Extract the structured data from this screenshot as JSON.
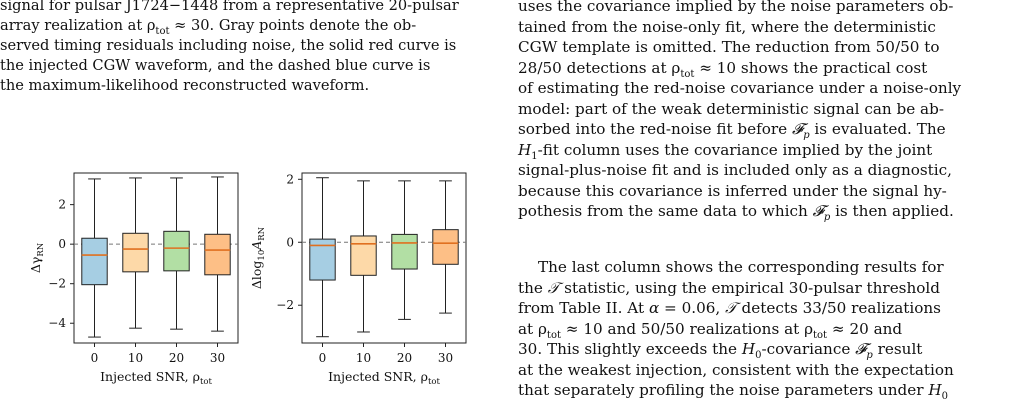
{
  "caption_lines": [
    "signal for pulsar J1724−1448 from a representative 20-pulsar",
    "array realization at ρtot ≈ 30. Gray points denote the ob-",
    "served timing residuals including noise, the solid red curve is",
    "the injected CGW waveform, and the dashed blue curve is",
    "the maximum-likelihood reconstructed waveform."
  ],
  "right_para1": [
    "uses the covariance implied by the noise parameters ob-",
    "tained from the noise-only fit, where the deterministic",
    "CGW template is omitted. The reduction from 50/50 to",
    "28/50 detections at ρtot ≈ 10 shows the practical cost",
    "of estimating the red-noise covariance under a noise-only",
    "model: part of the weak deterministic signal can be ab-",
    "sorbed into the red-noise fit before Fp is evaluated. The",
    "H1-fit column uses the covariance implied by the joint",
    "signal-plus-noise fit and is included only as a diagnostic,",
    "because this covariance is inferred under the signal hy-",
    "pothesis from the same data to which Fp is then applied."
  ],
  "right_para2": [
    "The last column shows the corresponding results for",
    "the T statistic, using the empirical 30-pulsar threshold",
    "from Table II. At α = 0.06, T detects 33/50 realizations",
    "at ρtot ≈ 10 and 50/50 realizations at ρtot ≈ 20 and",
    "30. This slightly exceeds the H0-covariance Fp result",
    "at the weakest injection, consistent with the expectation",
    "that separately profiling the noise parameters under H0"
  ],
  "chart_data": [
    {
      "type": "box",
      "ylabel": "ΔγRN",
      "xlabel": "Injected SNR, ρtot",
      "categories": [
        "0",
        "10",
        "20",
        "30"
      ],
      "yticks": [
        "2",
        "0",
        "−2",
        "−4"
      ],
      "ytick_values": [
        2,
        0,
        -2,
        -4
      ],
      "ylim": [
        -5.0,
        3.6
      ],
      "reference_line": 0,
      "box_colors": [
        "#a6cee3",
        "#fdd9a8",
        "#b2dfa4",
        "#fdbf86"
      ],
      "median_color": "#e07020",
      "boxes": [
        {
          "whisker_low": -4.7,
          "q1": -2.05,
          "median": -0.55,
          "q3": 0.3,
          "whisker_high": 3.3
        },
        {
          "whisker_low": -4.25,
          "q1": -1.4,
          "median": -0.25,
          "q3": 0.55,
          "whisker_high": 3.35
        },
        {
          "whisker_low": -4.3,
          "q1": -1.35,
          "median": -0.2,
          "q3": 0.65,
          "whisker_high": 3.35
        },
        {
          "whisker_low": -4.4,
          "q1": -1.55,
          "median": -0.3,
          "q3": 0.5,
          "whisker_high": 3.4
        }
      ]
    },
    {
      "type": "box",
      "ylabel": "Δlog10ARN",
      "xlabel": "Injected SNR, ρtot",
      "categories": [
        "0",
        "10",
        "20",
        "30"
      ],
      "yticks": [
        "2",
        "0",
        "−2"
      ],
      "ytick_values": [
        2,
        0,
        -2
      ],
      "ylim": [
        -3.2,
        2.2
      ],
      "reference_line": 0,
      "box_colors": [
        "#a6cee3",
        "#fdd9a8",
        "#b2dfa4",
        "#fdbf86"
      ],
      "median_color": "#e07020",
      "boxes": [
        {
          "whisker_low": -3.0,
          "q1": -1.2,
          "median": -0.1,
          "q3": 0.1,
          "whisker_high": 2.05
        },
        {
          "whisker_low": -2.85,
          "q1": -1.05,
          "median": -0.05,
          "q3": 0.2,
          "whisker_high": 1.95
        },
        {
          "whisker_low": -2.45,
          "q1": -0.85,
          "median": -0.02,
          "q3": 0.25,
          "whisker_high": 1.95
        },
        {
          "whisker_low": -2.25,
          "q1": -0.7,
          "median": -0.03,
          "q3": 0.4,
          "whisker_high": 1.95
        }
      ]
    }
  ]
}
